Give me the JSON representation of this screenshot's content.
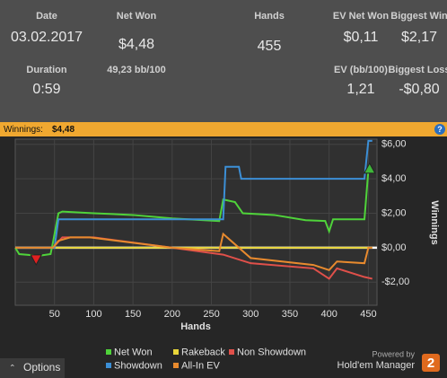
{
  "header": {
    "stats": [
      {
        "label": "Date",
        "value": "03.02.2017"
      },
      {
        "label": "Net Won",
        "value": "$4,48",
        "sub": "49,23 bb/100"
      },
      {
        "label": "Hands",
        "value": "455"
      },
      {
        "label": "EV Net Won",
        "value": "$0,11"
      },
      {
        "label": "Biggest Win",
        "value": "$2,17"
      },
      {
        "label": "Duration",
        "value": "0:59"
      },
      {
        "label": "EV (bb/100)",
        "value": "1,21"
      },
      {
        "label": "Biggest Loss",
        "value": "-$0,80"
      }
    ]
  },
  "bar": {
    "label": "Winnings:",
    "value": "$4,48"
  },
  "chart_data": {
    "type": "line",
    "x_label": "Hands",
    "y_label": "Winnings",
    "xlim": [
      0,
      461
    ],
    "ylim": [
      -3.34,
      6.3
    ],
    "xticks": [
      50,
      100,
      150,
      200,
      250,
      300,
      350,
      400,
      450
    ],
    "yticks": [
      {
        "value": 6,
        "label": "$6,00"
      },
      {
        "value": 4,
        "label": "$4,00"
      },
      {
        "value": 2,
        "label": "$2,00"
      },
      {
        "value": 0,
        "label": "$0,00"
      },
      {
        "value": -2,
        "label": "-$2,00"
      }
    ],
    "grid": true,
    "series": [
      {
        "name": "Net Won",
        "color": "#4fd33a",
        "x": [
          0,
          5,
          30,
          45,
          48,
          55,
          60,
          100,
          150,
          200,
          260,
          265,
          280,
          290,
          330,
          370,
          395,
          400,
          405,
          445,
          450,
          455
        ],
        "values": [
          0,
          -0.37,
          -0.47,
          -0.37,
          0.3,
          2.0,
          2.1,
          2.0,
          1.9,
          1.7,
          1.55,
          2.8,
          2.65,
          2.0,
          1.9,
          1.6,
          1.55,
          0.95,
          1.65,
          1.65,
          4.48,
          4.48
        ]
      },
      {
        "name": "Rakeback",
        "color": "#e8d53a",
        "x": [
          0,
          455
        ],
        "values": [
          0,
          0
        ]
      },
      {
        "name": "Non Showdown",
        "color": "#e0504a",
        "x": [
          0,
          48,
          60,
          100,
          200,
          265,
          300,
          380,
          400,
          410,
          445,
          455
        ],
        "values": [
          0,
          0,
          0.6,
          0.6,
          0.0,
          -0.4,
          -0.9,
          -1.2,
          -1.8,
          -1.2,
          -1.7,
          -1.8
        ]
      },
      {
        "name": "Showdown",
        "color": "#3c8fd6",
        "x": [
          0,
          50,
          55,
          265,
          268,
          285,
          288,
          445,
          450,
          455
        ],
        "values": [
          0,
          0,
          1.65,
          1.65,
          4.7,
          4.7,
          4.0,
          4.0,
          6.2,
          6.2
        ]
      },
      {
        "name": "All-In EV",
        "color": "#e88a2e",
        "x": [
          0,
          48,
          55,
          70,
          95,
          200,
          260,
          265,
          300,
          380,
          400,
          410,
          445,
          450,
          455
        ],
        "values": [
          0,
          0,
          0.4,
          0.6,
          0.6,
          0.0,
          -0.2,
          0.8,
          -0.6,
          -1.0,
          -1.3,
          -0.8,
          -0.9,
          0,
          0
        ]
      }
    ]
  },
  "footer": {
    "options": "Options",
    "powered": "Powered by",
    "brand": "Hold'em Manager",
    "logo": "2"
  }
}
